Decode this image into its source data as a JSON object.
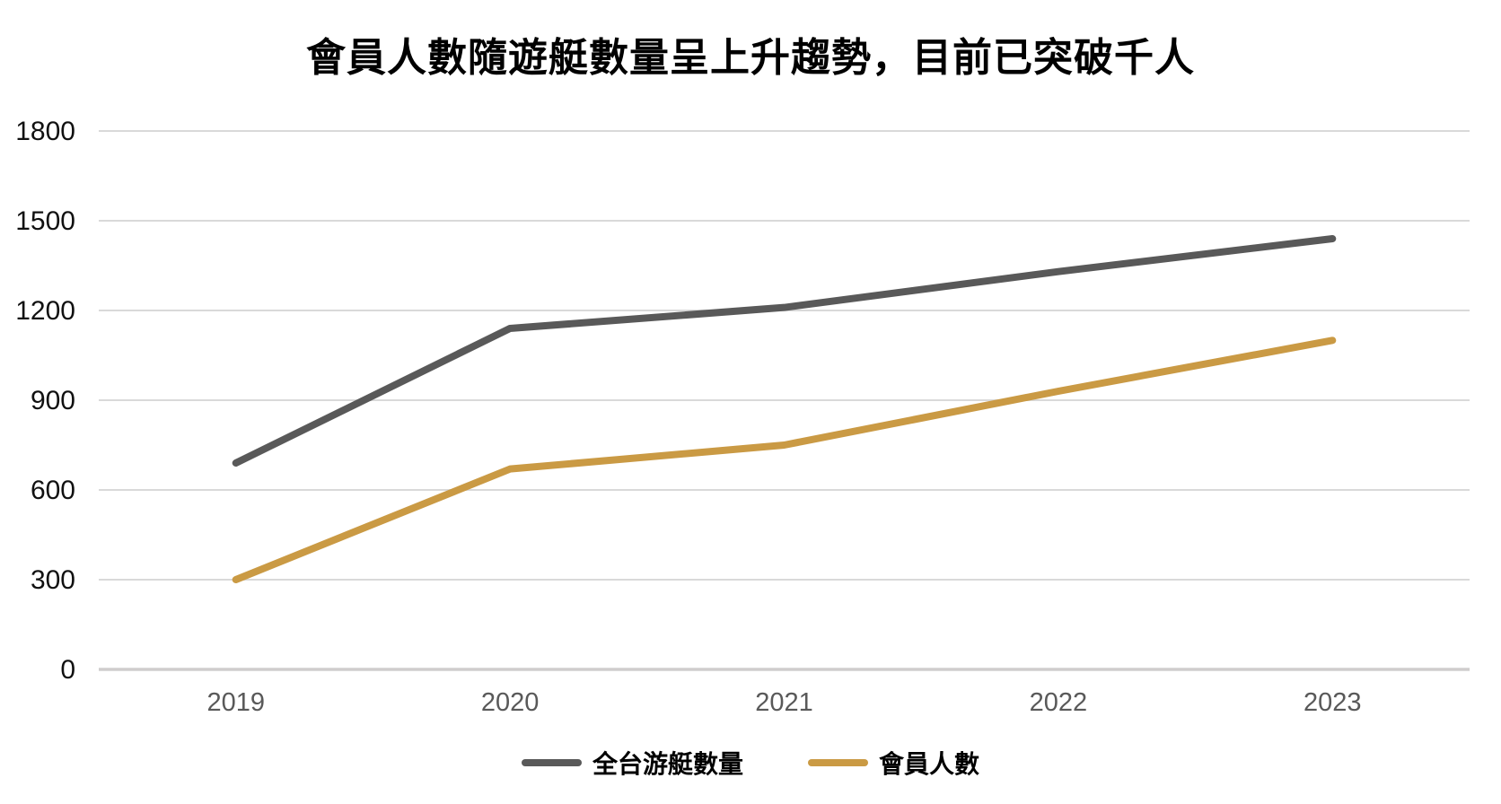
{
  "page": {
    "background": "#ffffff"
  },
  "chart_data": {
    "type": "line",
    "title": "會員人數隨遊艇數量呈上升趨勢，目前已突破千人",
    "categories": [
      "2019",
      "2020",
      "2021",
      "2022",
      "2023"
    ],
    "series": [
      {
        "name": "全台游艇數量",
        "color": "#595959",
        "values": [
          690,
          1140,
          1210,
          1330,
          1440
        ]
      },
      {
        "name": "會員人數",
        "color": "#CA9A44",
        "values": [
          300,
          670,
          750,
          930,
          1100
        ]
      }
    ],
    "xlabel": "",
    "ylabel": "",
    "ylim": [
      0,
      1800
    ],
    "yticks": [
      0,
      300,
      600,
      900,
      1200,
      1500,
      1800
    ],
    "grid": true,
    "legend_position": "bottom",
    "colors": {
      "gridline": "#D9D9D9",
      "zero_axis": "#CFCDCD",
      "ytick_label": "#111111",
      "xtick_label": "#595959"
    }
  }
}
